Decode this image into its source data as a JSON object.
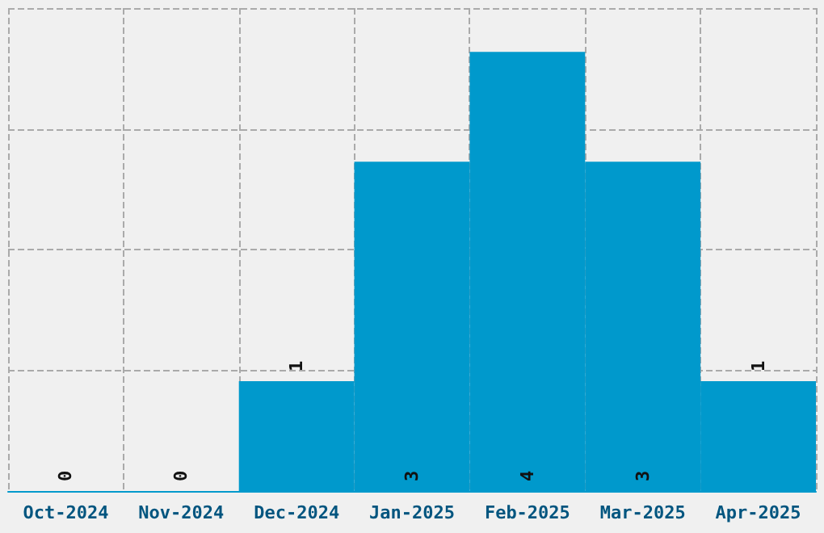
{
  "chart_data": {
    "type": "bar",
    "categories": [
      "Oct-2024",
      "Nov-2024",
      "Dec-2024",
      "Jan-2025",
      "Feb-2025",
      "Mar-2025",
      "Apr-2025"
    ],
    "values": [
      0,
      0,
      1,
      3,
      4,
      3,
      1
    ],
    "color": "#0099cc",
    "ylim": [
      0,
      4.4
    ],
    "yticks": [
      {
        "value": 0,
        "label": null
      },
      {
        "value": 1.1,
        "label": null
      },
      {
        "value": 2.2,
        "label": null
      },
      {
        "value": 3.3,
        "label": null
      },
      {
        "value": 4.4,
        "label": null
      }
    ],
    "tick_labels": "x",
    "grid": true,
    "line_style": "dashed",
    "data_labels": true
  }
}
